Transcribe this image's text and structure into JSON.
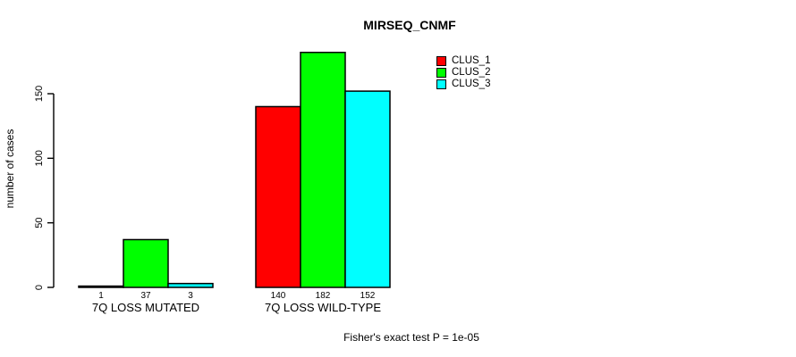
{
  "chart_data": {
    "type": "bar",
    "title": "MIRSEQ_CNMF",
    "ylabel": "number of cases",
    "xlabel": "",
    "yticks": [
      0,
      50,
      100,
      150
    ],
    "ylim": [
      0,
      150
    ],
    "grid": false,
    "legend_position": "top-right",
    "categories": [
      "7Q LOSS MUTATED",
      "7Q LOSS WILD-TYPE"
    ],
    "series": [
      {
        "name": "CLUS_1",
        "color": "#ff0000",
        "values": [
          1,
          140
        ]
      },
      {
        "name": "CLUS_2",
        "color": "#00ff00",
        "values": [
          37,
          182
        ]
      },
      {
        "name": "CLUS_3",
        "color": "#00ffff",
        "values": [
          3,
          152
        ]
      }
    ],
    "bar_value_labels": [
      [
        "1",
        "37",
        "3"
      ],
      [
        "140",
        "182",
        "152"
      ]
    ],
    "bar_border_color": "#000000",
    "annotation": "Fisher's exact test P = 1e-05"
  }
}
